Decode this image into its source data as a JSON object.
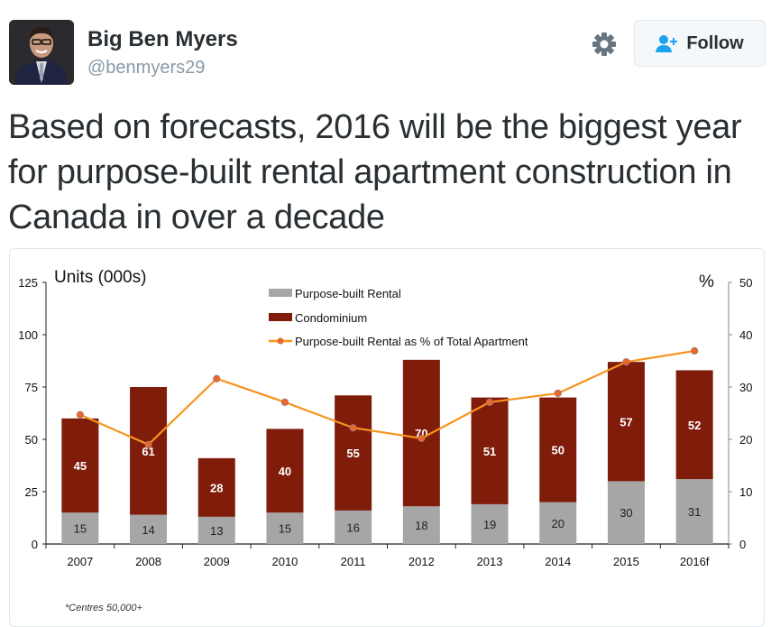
{
  "user": {
    "name": "Big Ben Myers",
    "handle": "@benmyers29",
    "avatar_icon": "profile-photo"
  },
  "actions": {
    "settings_icon": "gear-icon",
    "follow_label": "Follow",
    "follow_icon": "add-user-icon",
    "accent": "#1da1f2"
  },
  "tweet": {
    "text": "Based on forecasts, 2016 will be the biggest year for purpose-built rental apartment construction in Canada in over a decade"
  },
  "chart_data": {
    "type": "bar",
    "stacked": true,
    "title": "",
    "ylabel": "Units (000s)",
    "y2label": "%",
    "xlabel": "",
    "categories": [
      "2007",
      "2008",
      "2009",
      "2010",
      "2011",
      "2012",
      "2013",
      "2014",
      "2015",
      "2016f"
    ],
    "ylim": [
      0,
      125
    ],
    "y2lim": [
      0,
      50
    ],
    "yticks": [
      "0",
      "25",
      "50",
      "75",
      "100",
      "125"
    ],
    "y2ticks": [
      "0",
      "10",
      "20",
      "30",
      "40",
      "50"
    ],
    "grid": false,
    "legend_position": "top-center",
    "series": [
      {
        "name": "Purpose-built Rental",
        "kind": "bar",
        "color": "#a6a6a6",
        "label_color": "#222222",
        "values": [
          15,
          14,
          13,
          15,
          16,
          18,
          19,
          20,
          30,
          31
        ],
        "labels": [
          "15",
          "14",
          "13",
          "15",
          "16",
          "18",
          "19",
          "20",
          "30",
          "31"
        ]
      },
      {
        "name": "Condominium",
        "kind": "bar",
        "color": "#7f1c0a",
        "label_color": "#ffffff",
        "values": [
          45,
          61,
          28,
          40,
          55,
          70,
          51,
          50,
          57,
          52
        ],
        "labels": [
          "45",
          "61",
          "28",
          "40",
          "55",
          "70",
          "51",
          "50",
          "57",
          "52"
        ]
      },
      {
        "name": "Purpose-built Rental as % of Total Apartment",
        "kind": "line",
        "axis": "right",
        "color": "#f7941d",
        "marker_color": "#e8672a",
        "values": [
          24.7,
          19.0,
          31.6,
          27.1,
          22.2,
          20.2,
          27.1,
          28.8,
          34.8,
          36.9
        ]
      }
    ],
    "footnote": "*Centres 50,000+"
  }
}
